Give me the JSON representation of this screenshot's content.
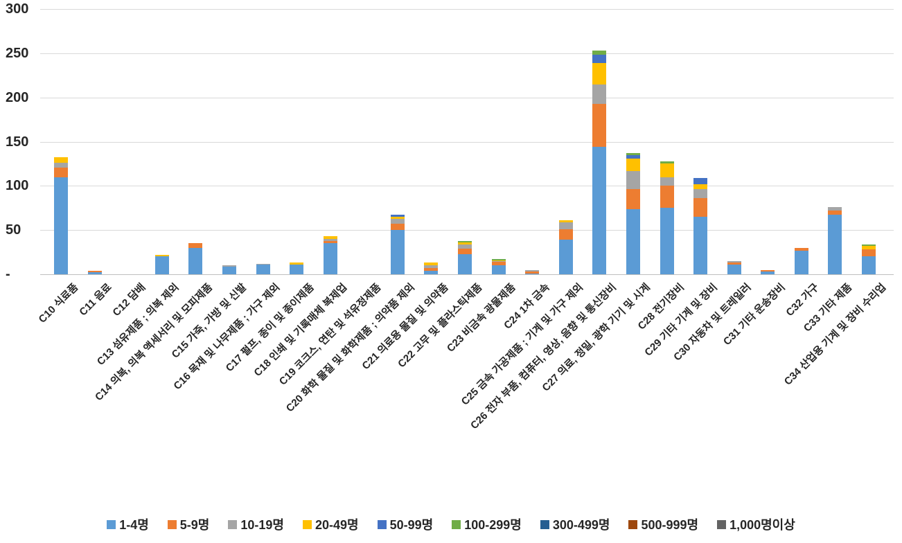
{
  "y_axis": {
    "tick_labels": [
      "300",
      "250",
      "200",
      "150",
      "100",
      "50",
      "-"
    ],
    "tick_values": [
      300,
      250,
      200,
      150,
      100,
      50,
      0
    ]
  },
  "chart_data": {
    "type": "bar",
    "stacked": true,
    "title": "",
    "xlabel": "",
    "ylabel": "",
    "ylim": [
      0,
      300
    ],
    "grid": "horizontal-only",
    "legend_position": "bottom",
    "categories": [
      "C10 식료품",
      "C11 음료",
      "C12 담배",
      "C13 섬유제품 ; 의복 제외",
      "C14 의복, 의복 액세서리 및 모피제품",
      "C15 가죽, 가방 및 신발",
      "C16 목재 및 나무제품 ; 가구 제외",
      "C17 펄프, 종이 및 종이제품",
      "C18 인쇄 및 기록매체 복제업",
      "C19 코크스, 연탄 및 석유정제품",
      "C20 화학 물질 및 화학제품 ; 의약품 제외",
      "C21 의료용 물질 및 의약품",
      "C22 고무 및 플라스틱제품",
      "C23 비금속 광물제품",
      "C24 1차 금속",
      "C25 금속 가공제품 ; 기계 및 가구 제외",
      "C26 전자 부품, 컴퓨터, 영상, 음향 및 통신장비",
      "C27 의료, 정밀, 광학 기기 및 시계",
      "C28 전기장비",
      "C29 기타 기계 및 장비",
      "C30 자동차 및 트레일러",
      "C31 기타 운송장비",
      "C32 가구",
      "C33 기타 제품",
      "C34 산업용 기계 및 장비 수리업"
    ],
    "series": [
      {
        "name": "1-4명",
        "color": "#5B9BD5",
        "values": [
          110,
          2,
          0,
          20,
          30,
          9,
          11,
          11,
          35,
          0,
          50,
          4,
          23,
          10,
          1,
          39,
          144,
          74,
          75,
          65,
          11,
          3,
          27,
          67,
          20
        ]
      },
      {
        "name": "5-9명",
        "color": "#ED7D31",
        "values": [
          11,
          2,
          0,
          0,
          5,
          0,
          0,
          0,
          3,
          0,
          7,
          3,
          6,
          4,
          2,
          12,
          49,
          22,
          25,
          21,
          2,
          2,
          3,
          5,
          8
        ]
      },
      {
        "name": "10-19명",
        "color": "#A5A5A5",
        "values": [
          5,
          0,
          0,
          0,
          0,
          1,
          1,
          0,
          2,
          0,
          6,
          3,
          5,
          1,
          2,
          8,
          22,
          21,
          10,
          10,
          2,
          0,
          0,
          4,
          0
        ]
      },
      {
        "name": "20-49명",
        "color": "#FFC000",
        "values": [
          6,
          0,
          0,
          2,
          0,
          0,
          0,
          2,
          3,
          0,
          2,
          3,
          2,
          1,
          0,
          2,
          24,
          14,
          15,
          6,
          0,
          0,
          0,
          0,
          4
        ]
      },
      {
        "name": "50-99명",
        "color": "#4472C4",
        "values": [
          0,
          0,
          0,
          0,
          0,
          0,
          0,
          0,
          0,
          0,
          2,
          0,
          0,
          0,
          0,
          0,
          9,
          4,
          0,
          7,
          0,
          0,
          0,
          0,
          0
        ]
      },
      {
        "name": "100-299명",
        "color": "#70AD47",
        "values": [
          0,
          0,
          0,
          0,
          0,
          0,
          0,
          0,
          0,
          0,
          0,
          0,
          2,
          1,
          0,
          0,
          5,
          2,
          3,
          0,
          0,
          0,
          0,
          0,
          2
        ]
      },
      {
        "name": "300-499명",
        "color": "#255E91",
        "values": [
          0,
          0,
          0,
          0,
          0,
          0,
          0,
          0,
          0,
          0,
          0,
          0,
          0,
          0,
          0,
          0,
          0,
          0,
          0,
          0,
          0,
          0,
          0,
          0,
          0
        ]
      },
      {
        "name": "500-999명",
        "color": "#9E480E",
        "values": [
          0,
          0,
          0,
          0,
          0,
          0,
          0,
          0,
          0,
          0,
          0,
          0,
          0,
          0,
          0,
          0,
          0,
          0,
          0,
          0,
          0,
          0,
          0,
          0,
          0
        ]
      },
      {
        "name": "1,000명이상",
        "color": "#636363",
        "values": [
          0,
          0,
          0,
          0,
          0,
          0,
          0,
          0,
          0,
          0,
          0,
          0,
          0,
          0,
          0,
          0,
          0,
          0,
          0,
          0,
          0,
          0,
          0,
          0,
          0
        ]
      }
    ]
  }
}
